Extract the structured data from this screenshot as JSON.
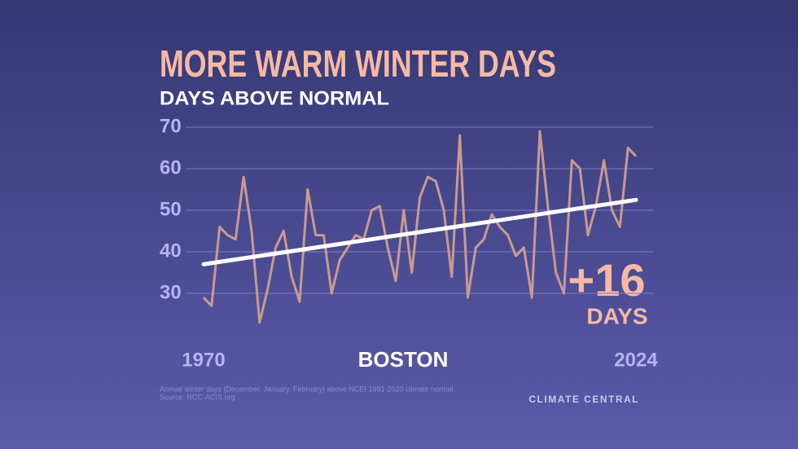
{
  "chart_data": {
    "type": "line",
    "title": "MORE WARM WINTER DAYS",
    "subtitle": "DAYS ABOVE NORMAL",
    "location": "BOSTON",
    "annotation": "+16",
    "annotation_unit": "DAYS",
    "footnote": "Annual winter days (December, January, February) above NCEI 1991-2020 climate normal.",
    "source": "Source: RCC-ACIS.org",
    "brand": "CLIMATE CENTRAL",
    "x": [
      1970,
      1971,
      1972,
      1973,
      1974,
      1975,
      1976,
      1977,
      1978,
      1979,
      1980,
      1981,
      1982,
      1983,
      1984,
      1985,
      1986,
      1987,
      1988,
      1989,
      1990,
      1991,
      1992,
      1993,
      1994,
      1995,
      1996,
      1997,
      1998,
      1999,
      2000,
      2001,
      2002,
      2003,
      2004,
      2005,
      2006,
      2007,
      2008,
      2009,
      2010,
      2011,
      2012,
      2013,
      2014,
      2015,
      2016,
      2017,
      2018,
      2019,
      2020,
      2021,
      2022,
      2023,
      2024
    ],
    "values": [
      29,
      27,
      46,
      44,
      43,
      58,
      45,
      23,
      31,
      41,
      45,
      34,
      28,
      55,
      44,
      44,
      30,
      38,
      41,
      44,
      43,
      50,
      51,
      41,
      33,
      50,
      35,
      53,
      58,
      57,
      50,
      34,
      68,
      29,
      41,
      43,
      49,
      46,
      44,
      39,
      41,
      29,
      69,
      51,
      35,
      30,
      62,
      60,
      44,
      51,
      62,
      50,
      46,
      65,
      63
    ],
    "color": "#c99a91",
    "trend": {
      "x": [
        1970,
        2024
      ],
      "values": [
        37,
        52.5
      ],
      "color": "#ffffff"
    },
    "xlim": [
      1970,
      2024
    ],
    "xticks": [
      1970,
      2024
    ],
    "ylim": [
      20,
      70
    ],
    "yticks": [
      30,
      40,
      50,
      60,
      70
    ],
    "grid": true
  }
}
